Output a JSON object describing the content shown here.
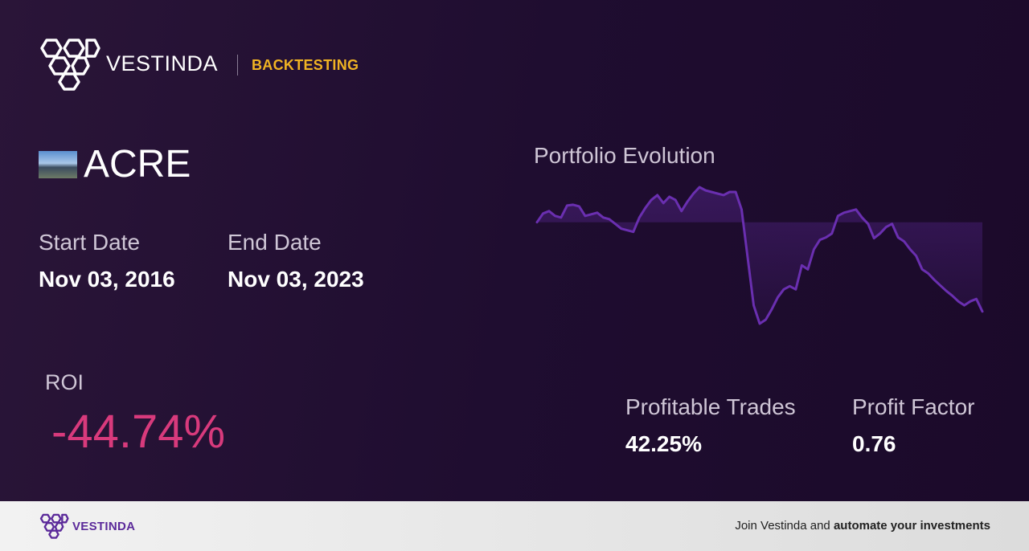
{
  "header": {
    "brand": "VESTINDA",
    "section": "BACKTESTING"
  },
  "ticker": "ACRE",
  "start_date": {
    "label": "Start Date",
    "value": "Nov 03, 2016"
  },
  "end_date": {
    "label": "End Date",
    "value": "Nov 03, 2023"
  },
  "roi": {
    "label": "ROI",
    "value": "-44.74%"
  },
  "profitable_trades": {
    "label": "Profitable Trades",
    "value": "42.25%"
  },
  "profit_factor": {
    "label": "Profit Factor",
    "value": "0.76"
  },
  "chart_data": {
    "type": "line",
    "title": "Portfolio Evolution",
    "color": "#6a2fb0",
    "values": [
      100,
      104.4,
      105.6,
      103.2,
      102.4,
      108.4,
      108.8,
      108,
      103.2,
      104,
      104.8,
      102.4,
      101.6,
      99.2,
      96.8,
      96,
      95.2,
      102.4,
      107.2,
      111.2,
      113.6,
      109.6,
      112.8,
      111.2,
      105.6,
      110.4,
      114.4,
      117.6,
      116,
      115.2,
      114.4,
      113.6,
      115.2,
      115.2,
      106.4,
      82.4,
      58.4,
      49.2,
      51.2,
      56.4,
      62.4,
      66.4,
      68,
      66.4,
      78.4,
      76.4,
      86.4,
      91.2,
      92.4,
      94.4,
      103.2,
      104.8,
      105.6,
      106.4,
      102.4,
      99.2,
      92,
      94.4,
      97.6,
      99.2,
      92.4,
      90.4,
      86.4,
      83.2,
      76.4,
      74.4,
      71.2,
      68.4,
      65.6,
      63.2,
      60.4,
      58.4,
      60.4,
      61.6,
      55.3
    ]
  },
  "footer": {
    "brand": "VESTINDA",
    "cta": "Join Vestinda and",
    "cta_bold": "automate your investments"
  }
}
